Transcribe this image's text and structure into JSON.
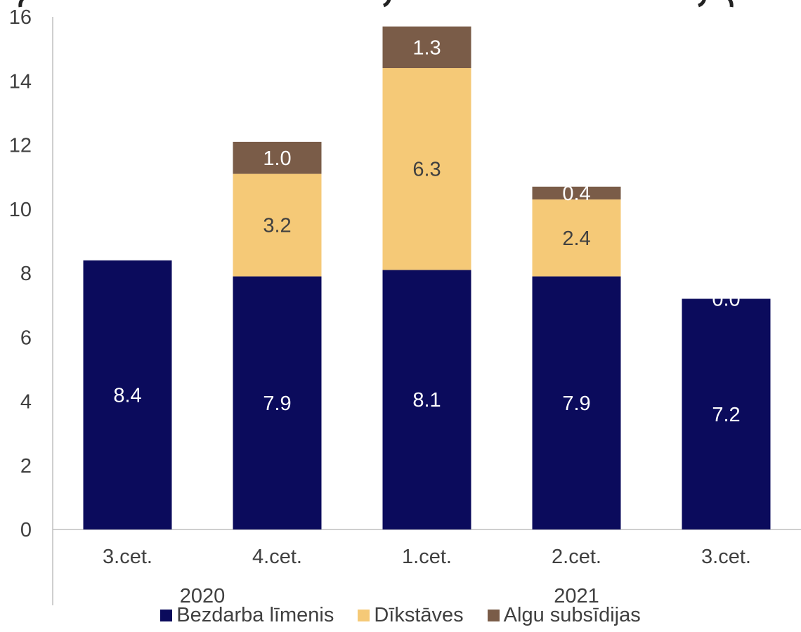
{
  "chart_data": {
    "type": "bar",
    "stacked": true,
    "categories": [
      "3.cet.",
      "4.cet.",
      "1.cet.",
      "2.cet.",
      "3.cet."
    ],
    "year_groups": [
      {
        "label": "2020",
        "from": 0,
        "to": 1
      },
      {
        "label": "2021",
        "from": 2,
        "to": 4
      }
    ],
    "series": [
      {
        "name": "Bezdarba līmenis",
        "color": "#0b0b5c",
        "values": [
          8.4,
          7.9,
          8.1,
          7.9,
          7.2
        ],
        "labels": [
          "8.4",
          "7.9",
          "8.1",
          "7.9",
          "7.2"
        ],
        "label_color": "#ffffff"
      },
      {
        "name": "Dīkstāves",
        "color": "#f5c977",
        "values": [
          0,
          3.2,
          6.3,
          2.4,
          0
        ],
        "labels": [
          "",
          "3.2",
          "6.3",
          "2.4",
          ""
        ],
        "label_color": "#404040"
      },
      {
        "name": "Algu subsīdijas",
        "color": "#7a5c48",
        "values": [
          0,
          1.0,
          1.3,
          0.4,
          0.0
        ],
        "labels": [
          "",
          "1.0",
          "1.3",
          "0.4",
          "0.0"
        ],
        "label_color": "#ffffff"
      }
    ],
    "ylim": [
      0,
      16
    ],
    "yticks": [
      "0",
      "2",
      "4",
      "6",
      "8",
      "10",
      "12",
      "14",
      "16"
    ],
    "grid": false,
    "legend_position": "bottom"
  }
}
